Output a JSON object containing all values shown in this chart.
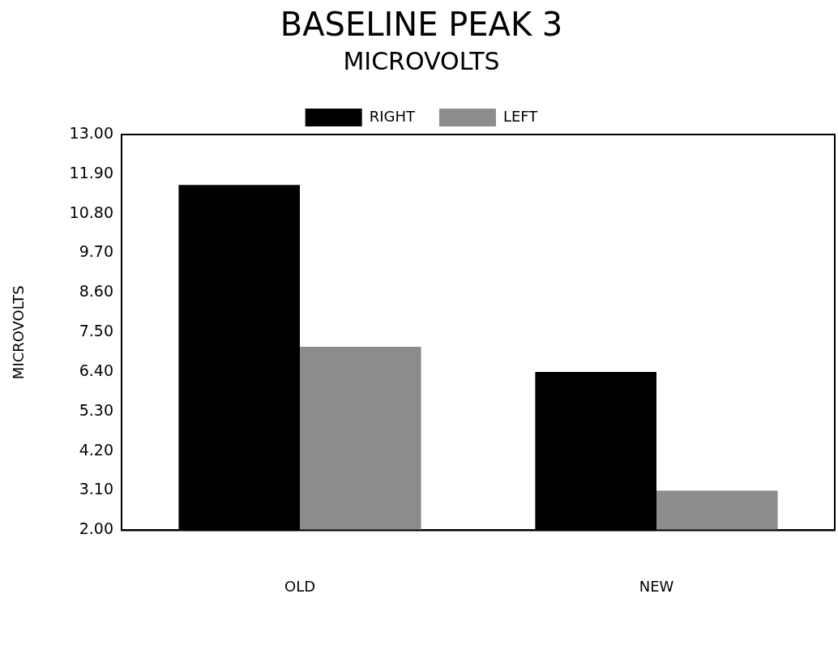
{
  "chart_data": {
    "type": "bar",
    "title": "BASELINE PEAK 3",
    "subtitle": "MICROVOLTS",
    "ylabel": "MICROVOLTS",
    "categories": [
      "OLD",
      "NEW"
    ],
    "series": [
      {
        "name": "RIGHT",
        "color": "#000000",
        "values": [
          11.6,
          6.4
        ]
      },
      {
        "name": "LEFT",
        "color": "#8c8c8c",
        "values": [
          7.1,
          3.1
        ]
      }
    ],
    "ylim": [
      2,
      13
    ],
    "yticks": [
      {
        "value": 2,
        "label": "2.00"
      },
      {
        "value": 3.1,
        "label": "3.10"
      },
      {
        "value": 4.2,
        "label": "4.20"
      },
      {
        "value": 5.3,
        "label": "5.30"
      },
      {
        "value": 6.4,
        "label": "6.40"
      },
      {
        "value": 7.5,
        "label": "7.50"
      },
      {
        "value": 8.6,
        "label": "8.60"
      },
      {
        "value": 9.7,
        "label": "9.70"
      },
      {
        "value": 10.8,
        "label": "10.80"
      },
      {
        "value": 11.9,
        "label": "11.90"
      },
      {
        "value": 13,
        "label": "13.00"
      }
    ],
    "grid": false,
    "legend": "top"
  }
}
